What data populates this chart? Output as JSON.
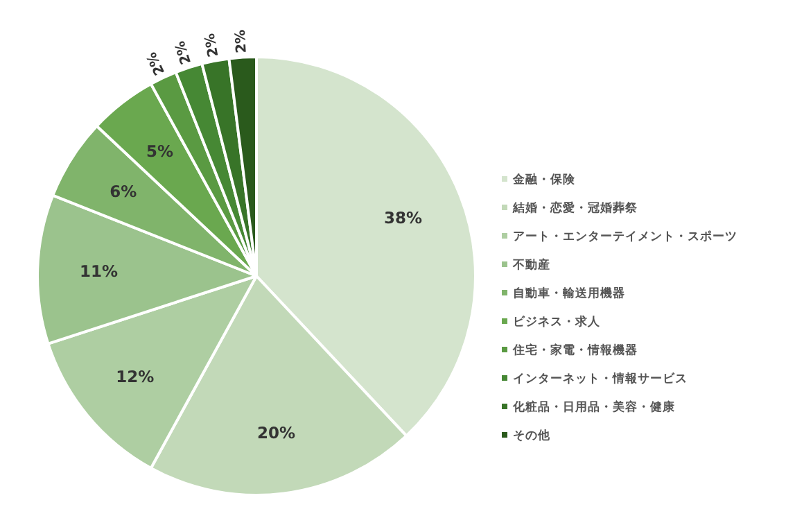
{
  "chart_data": {
    "type": "pie",
    "categories": [
      "金融・保険",
      "結婚・恋愛・冠婚葬祭",
      "アート・エンターテイメント・スポーツ",
      "不動産",
      "自動車・輸送用機器",
      "ビジネス・求人",
      "住宅・家電・情報機器",
      "インターネット・情報サービス",
      "化粧品・日用品・美容・健康",
      "その他"
    ],
    "values": [
      38,
      20,
      12,
      11,
      6,
      5,
      2,
      2,
      2,
      2
    ],
    "value_labels": [
      "38%",
      "20%",
      "12%",
      "11%",
      "6%",
      "5%",
      "2%",
      "2%",
      "2%",
      "2%"
    ],
    "colors": [
      "#d4e4cd",
      "#c2d9b8",
      "#aecea2",
      "#9bc38d",
      "#80b46b",
      "#6aa84f",
      "#5a9a42",
      "#468834",
      "#387428",
      "#2a5a1c"
    ],
    "legend": "right"
  }
}
